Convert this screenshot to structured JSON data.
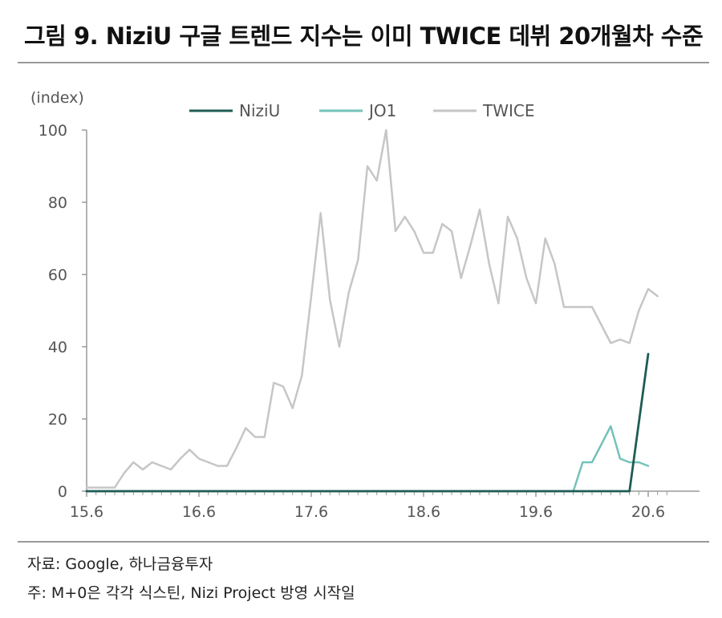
{
  "title": "그림 9. NiziU 구글 트렌드 지수는 이미 TWICE 데뷔 20개월차 수준",
  "footer": {
    "source": "자료: Google, 하나금융투자",
    "note": "주: M+0은 각각 식스틴, Nizi Project 방영 시작일"
  },
  "colors": {
    "NiziU": "#1f5c56",
    "JO1": "#74c2b9",
    "TWICE": "#c6c6c6",
    "axis": "#9a9a9a"
  },
  "chart_data": {
    "type": "line",
    "ylabel": "(index)",
    "ylim": [
      0,
      100
    ],
    "yticks": [
      0,
      20,
      40,
      60,
      80,
      100
    ],
    "xlim": [
      0,
      62
    ],
    "x_ticks": [
      {
        "x": 0,
        "label": "15.6"
      },
      {
        "x": 12,
        "label": "16.6"
      },
      {
        "x": 24,
        "label": "17.6"
      },
      {
        "x": 36,
        "label": "18.6"
      },
      {
        "x": 48,
        "label": "19.6"
      },
      {
        "x": 60,
        "label": "20.6"
      }
    ],
    "legend": "top-center",
    "series": [
      {
        "name": "NiziU",
        "points": [
          [
            0,
            0
          ],
          [
            10,
            0
          ],
          [
            20,
            0
          ],
          [
            30,
            0
          ],
          [
            40,
            0
          ],
          [
            50,
            0
          ],
          [
            55,
            0
          ],
          [
            58,
            0
          ],
          [
            60,
            38
          ]
        ]
      },
      {
        "name": "JO1",
        "points": [
          [
            0,
            0
          ],
          [
            10,
            0
          ],
          [
            20,
            0
          ],
          [
            30,
            0
          ],
          [
            40,
            0
          ],
          [
            50,
            0
          ],
          [
            52,
            0
          ],
          [
            53,
            8
          ],
          [
            54,
            8
          ],
          [
            55,
            13
          ],
          [
            56,
            18
          ],
          [
            57,
            9
          ],
          [
            58,
            8
          ],
          [
            59,
            8
          ],
          [
            60,
            7
          ]
        ]
      },
      {
        "name": "TWICE",
        "points": [
          [
            0,
            1
          ],
          [
            1,
            1
          ],
          [
            2,
            1
          ],
          [
            3,
            1
          ],
          [
            4,
            5
          ],
          [
            5,
            8
          ],
          [
            6,
            6
          ],
          [
            7,
            8
          ],
          [
            8,
            7
          ],
          [
            9,
            6
          ],
          [
            10,
            9
          ],
          [
            11,
            11.5
          ],
          [
            12,
            9
          ],
          [
            13,
            8
          ],
          [
            14,
            7
          ],
          [
            15,
            7
          ],
          [
            16,
            12
          ],
          [
            17,
            17.5
          ],
          [
            18,
            15
          ],
          [
            19,
            15
          ],
          [
            20,
            30
          ],
          [
            21,
            29
          ],
          [
            22,
            23
          ],
          [
            23,
            32
          ],
          [
            24,
            54
          ],
          [
            25,
            77
          ],
          [
            26,
            53
          ],
          [
            27,
            40
          ],
          [
            28,
            55
          ],
          [
            29,
            64
          ],
          [
            30,
            90
          ],
          [
            31,
            86
          ],
          [
            32,
            100
          ],
          [
            33,
            72
          ],
          [
            34,
            76
          ],
          [
            35,
            72
          ],
          [
            36,
            66
          ],
          [
            37,
            66
          ],
          [
            38,
            74
          ],
          [
            39,
            72
          ],
          [
            40,
            59
          ],
          [
            41,
            68
          ],
          [
            42,
            78
          ],
          [
            43,
            63
          ],
          [
            44,
            52
          ],
          [
            45,
            76
          ],
          [
            46,
            70
          ],
          [
            47,
            59
          ],
          [
            48,
            52
          ],
          [
            49,
            70
          ],
          [
            50,
            63
          ],
          [
            51,
            51
          ],
          [
            52,
            51
          ],
          [
            53,
            51
          ],
          [
            54,
            51
          ],
          [
            55,
            46
          ],
          [
            56,
            41
          ],
          [
            57,
            42
          ],
          [
            58,
            41
          ],
          [
            59,
            50
          ],
          [
            60,
            56
          ],
          [
            61,
            54
          ]
        ]
      }
    ]
  }
}
